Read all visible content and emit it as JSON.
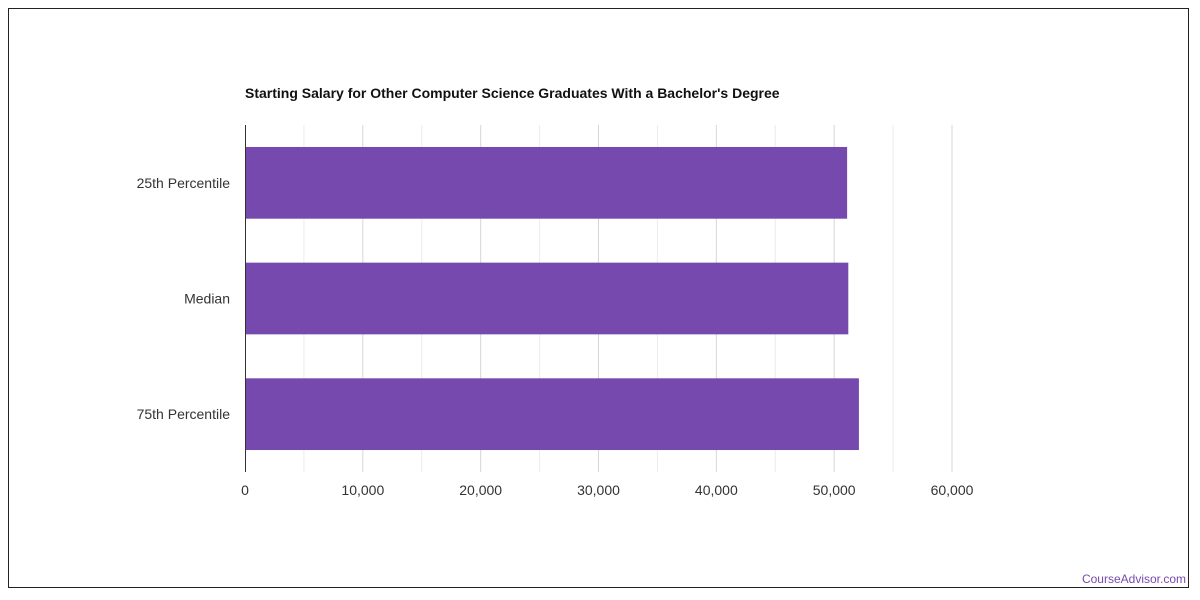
{
  "chart_data": {
    "type": "bar",
    "orientation": "horizontal",
    "title": "Starting Salary for Other Computer Science Graduates With a Bachelor's Degree",
    "categories": [
      "25th Percentile",
      "Median",
      "75th Percentile"
    ],
    "values": [
      51100,
      51200,
      52100
    ],
    "xlim": [
      0,
      60000
    ],
    "x_ticks": [
      0,
      10000,
      20000,
      30000,
      40000,
      50000,
      60000
    ],
    "x_tick_labels": [
      "0",
      "10,000",
      "20,000",
      "30,000",
      "40,000",
      "50,000",
      "60,000"
    ],
    "xlabel": "",
    "ylabel": "",
    "grid": true,
    "bar_color": "#7549ad"
  },
  "credit": "CourseAdvisor.com",
  "colors": {
    "credit": "#7a48b0",
    "grid_major": "#d6d6d6",
    "grid_minor": "#ececec",
    "axis": "#333333"
  }
}
